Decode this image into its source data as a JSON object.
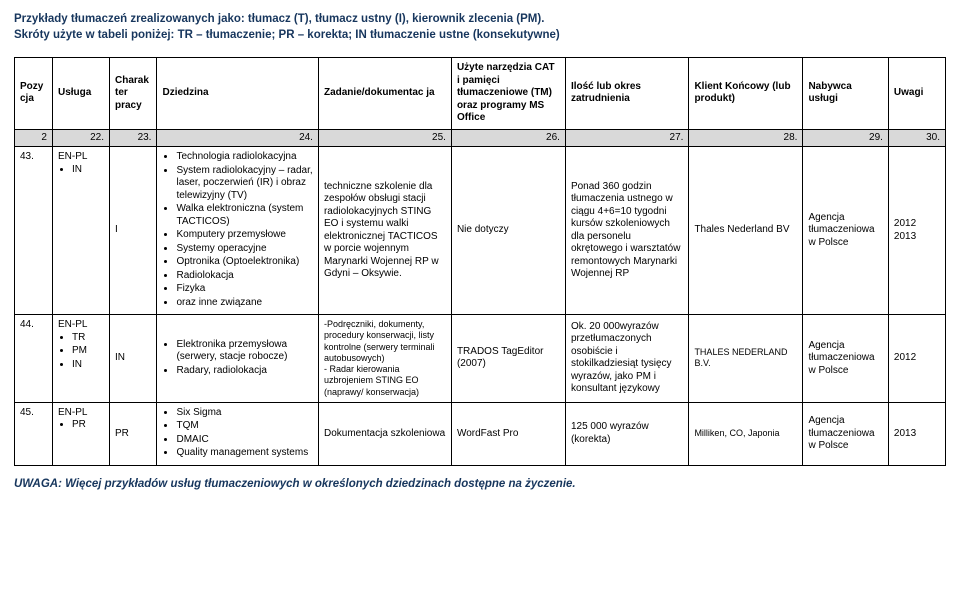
{
  "header": {
    "line1": "Przykłady tłumaczeń zrealizowanych jako: tłumacz (T), tłumacz ustny (I), kierownik zlecenia (PM).",
    "line2": "Skróty użyte w tabeli poniżej: TR – tłumaczenie; PR – korekta; IN tłumaczenie ustne (konsekutywne)"
  },
  "columns": {
    "c1": "Pozy cja",
    "c2": "Usługa",
    "c3": "Charak ter pracy",
    "c4": "Dziedzina",
    "c5": "Zadanie/dokumentac ja",
    "c6": "Użyte narzędzia CAT i pamięci tłumaczeniowe (TM) oraz programy MS Office",
    "c7": "Ilość lub okres zatrudnienia",
    "c8": "Klient Końcowy (lub produkt)",
    "c9": "Nabywca usługi",
    "c10": "Uwagi"
  },
  "greyRow": {
    "g1": "2",
    "g2": "22.",
    "g3": "23.",
    "g4": "24.",
    "g5": "25.",
    "g6": "26.",
    "g7": "27.",
    "g8": "28.",
    "g9": "29.",
    "g10": "30."
  },
  "rows": [
    {
      "pozy": "43.",
      "usluga": [
        "EN-PL",
        "IN"
      ],
      "charak": "I",
      "dziedzina": [
        "Technologia radiolokacyjna",
        "System radiolokacyjny – radar, laser, poczerwień (IR) i obraz telewizyjny (TV)",
        "Walka elektroniczna (system TACTICOS)",
        "Komputery przemysłowe",
        "Systemy operacyjne",
        "Optronika (Optoelektronika)",
        "Radiolokacja",
        "Fizyka",
        "oraz inne związane"
      ],
      "zadanie": "techniczne szkolenie dla zespołów obsługi stacji radiolokacyjnych STING EO  i systemu walki elektronicznej TACTICOS w porcie wojennym Marynarki Wojennej RP w Gdyni – Oksywie.",
      "narz": "Nie dotyczy",
      "ilosc": "Ponad 360 godzin tłumaczenia ustnego w ciągu 4+6=10 tygodni kursów szkoleniowych dla personelu okrętowego i warsztatów remontowych Marynarki Wojennej RP",
      "klient": "Thales Nederland BV",
      "nabyw": "Agencja tłumaczeniowa w Polsce",
      "uwagi": "2012 2013"
    },
    {
      "pozy": "44.",
      "usluga": [
        "EN-PL",
        "TR",
        "PM",
        "IN"
      ],
      "charak": "IN",
      "dziedzina": [
        "Elektronika przemysłowa (serwery, stacje robocze)",
        "Radary, radiolokacja"
      ],
      "zadanie": "-Podręczniki, dokumenty, procedury konserwacji, listy kontrolne (serwery terminali autobusowych)\n- Radar kierowania uzbrojeniem STING EO (naprawy/ konserwacja)",
      "narz": "TRADOS TagEditor (2007)",
      "ilosc": "Ok. 20 000wyrazów przetłumaczonych osobiście i stokilkadziesiąt tysięcy wyrazów, jako PM i konsultant językowy",
      "klient": "THALES NEDERLAND B.V.",
      "nabyw": "Agencja tłumaczeniowa w Polsce",
      "uwagi": "2012"
    },
    {
      "pozy": "45.",
      "usluga": [
        "EN-PL",
        "PR"
      ],
      "charak": "PR",
      "dziedzina": [
        "Six Sigma",
        "TQM",
        "DMAIC",
        "Quality management systems"
      ],
      "zadanie": "Dokumentacja szkoleniowa",
      "narz": "WordFast Pro",
      "ilosc": "125 000 wyrazów (korekta)",
      "klient": "Milliken, CO, Japonia",
      "nabyw": "Agencja tłumaczeniowa w Polsce",
      "uwagi": "2013"
    }
  ],
  "footer": "UWAGA: Więcej przykładów usług tłumaczeniowych w określonych dziedzinach dostępne na życzenie.",
  "colors": {
    "headerText": "#17365d",
    "greyFill": "#d9d9d9",
    "border": "#000000",
    "bg": "#ffffff"
  }
}
